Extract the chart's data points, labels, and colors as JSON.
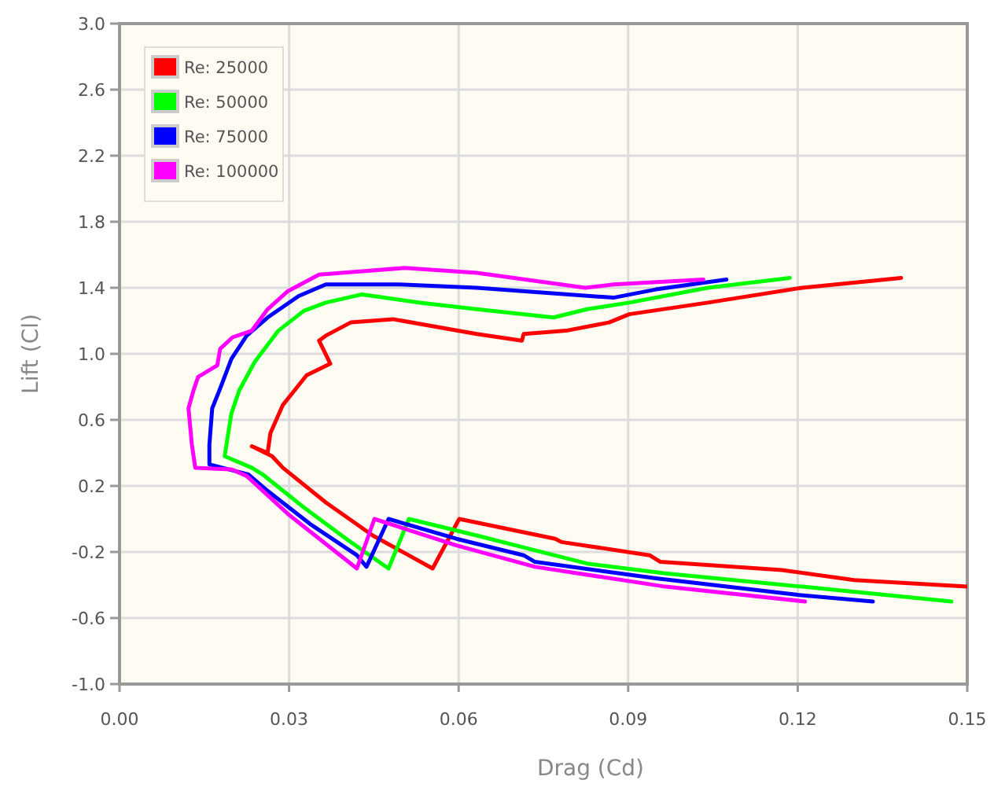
{
  "chart_data": {
    "type": "line",
    "xlabel": "Drag (Cd)",
    "ylabel": "Lift (Cl)",
    "xlim": [
      0,
      0.15
    ],
    "ylim": [
      -1,
      3
    ],
    "xticks": [
      {
        "value": 0,
        "label": "0.00"
      },
      {
        "value": 0.03,
        "label": "0.03"
      },
      {
        "value": 0.06,
        "label": "0.06"
      },
      {
        "value": 0.09,
        "label": "0.09"
      },
      {
        "value": 0.12,
        "label": "0.12"
      },
      {
        "value": 0.15,
        "label": "0.15"
      }
    ],
    "yticks": [
      {
        "value": -1,
        "label": "-1.0"
      },
      {
        "value": -0.6,
        "label": "-0.6"
      },
      {
        "value": -0.2,
        "label": "-0.2"
      },
      {
        "value": 0.2,
        "label": "0.2"
      },
      {
        "value": 0.6,
        "label": "0.6"
      },
      {
        "value": 1,
        "label": "1.0"
      },
      {
        "value": 1.4,
        "label": "1.4"
      },
      {
        "value": 1.8,
        "label": "1.8"
      },
      {
        "value": 2.2,
        "label": "2.2"
      },
      {
        "value": 2.6,
        "label": "2.6"
      },
      {
        "value": 3,
        "label": "3.0"
      }
    ],
    "grid": true,
    "legend": "top left",
    "marker": "none",
    "line_style": "solid",
    "series": [
      {
        "name": "Re: 25000",
        "color": "#ff0000",
        "x": [
          0.1383,
          0.1208,
          0.1041,
          0.0902,
          0.0866,
          0.079,
          0.0715,
          0.0712,
          0.0632,
          0.0484,
          0.0409,
          0.0365,
          0.0353,
          0.0373,
          0.0331,
          0.0289,
          0.0267,
          0.0262,
          0.0234,
          0.027,
          0.0289,
          0.0365,
          0.0448,
          0.0554,
          0.0601,
          0.0771,
          0.0782,
          0.0938,
          0.0957,
          0.1172,
          0.13,
          0.15
        ],
        "values": [
          1.46,
          1.4,
          1.31,
          1.24,
          1.19,
          1.14,
          1.12,
          1.08,
          1.12,
          1.21,
          1.19,
          1.11,
          1.08,
          0.94,
          0.87,
          0.69,
          0.52,
          0.4,
          0.44,
          0.38,
          0.31,
          0.1,
          -0.1,
          -0.3,
          0,
          -0.12,
          -0.14,
          -0.22,
          -0.26,
          -0.31,
          -0.37,
          -0.41
        ]
      },
      {
        "name": "Re: 50000",
        "color": "#00ff00",
        "x": [
          0.1186,
          0.1041,
          0.0902,
          0.0827,
          0.0768,
          0.0632,
          0.0532,
          0.0429,
          0.0365,
          0.0326,
          0.0281,
          0.0239,
          0.0212,
          0.0198,
          0.0186,
          0.0234,
          0.0253,
          0.0326,
          0.0401,
          0.0476,
          0.0512,
          0.0632,
          0.0735,
          0.0827,
          0.0966,
          0.1208,
          0.1472
        ],
        "values": [
          1.46,
          1.4,
          1.31,
          1.27,
          1.22,
          1.27,
          1.31,
          1.36,
          1.31,
          1.26,
          1.14,
          0.95,
          0.78,
          0.64,
          0.38,
          0.31,
          0.27,
          0.07,
          -0.12,
          -0.3,
          0,
          -0.1,
          -0.19,
          -0.27,
          -0.33,
          -0.41,
          -0.5
        ]
      },
      {
        "name": "Re: 75000",
        "color": "#0000ff",
        "x": [
          0.1074,
          0.0949,
          0.0874,
          0.0632,
          0.0493,
          0.0365,
          0.0317,
          0.0262,
          0.0225,
          0.0198,
          0.0178,
          0.0164,
          0.0159,
          0.0159,
          0.0228,
          0.0262,
          0.0337,
          0.042,
          0.0437,
          0.0476,
          0.0596,
          0.0715,
          0.0735,
          0.0949,
          0.12,
          0.1333
        ],
        "values": [
          1.45,
          1.39,
          1.34,
          1.4,
          1.42,
          1.42,
          1.35,
          1.22,
          1.11,
          0.97,
          0.79,
          0.67,
          0.45,
          0.33,
          0.27,
          0.17,
          -0.03,
          -0.22,
          -0.29,
          0,
          -0.12,
          -0.22,
          -0.26,
          -0.36,
          -0.46,
          -0.5
        ]
      },
      {
        "name": "Re: 100000",
        "color": "#ff00ff",
        "x": [
          0.1033,
          0.0874,
          0.0824,
          0.0632,
          0.0504,
          0.0429,
          0.0353,
          0.0298,
          0.0262,
          0.0234,
          0.02,
          0.0178,
          0.0173,
          0.0139,
          0.0131,
          0.0122,
          0.0128,
          0.0134,
          0.0198,
          0.0225,
          0.0298,
          0.042,
          0.0451,
          0.0596,
          0.0735,
          0.0966,
          0.1213
        ],
        "values": [
          1.45,
          1.42,
          1.4,
          1.49,
          1.52,
          1.5,
          1.48,
          1.38,
          1.27,
          1.14,
          1.1,
          1.03,
          0.93,
          0.86,
          0.78,
          0.67,
          0.45,
          0.31,
          0.3,
          0.26,
          0.03,
          -0.3,
          0,
          -0.16,
          -0.29,
          -0.41,
          -0.5
        ]
      }
    ]
  }
}
